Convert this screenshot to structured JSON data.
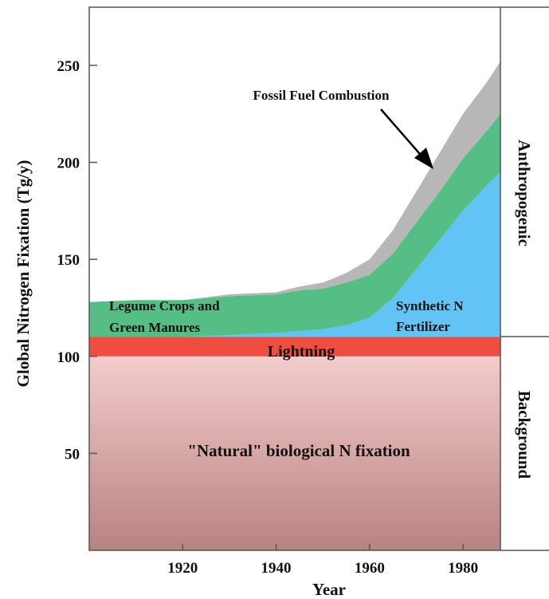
{
  "chart_data": {
    "type": "area",
    "stacked": true,
    "title": "",
    "xlabel": "Year",
    "ylabel": "Global Nitrogen Fixation (Tg/y)",
    "xlim": [
      1900,
      1988
    ],
    "ylim": [
      0,
      280
    ],
    "x_ticks": [
      "1920",
      "1940",
      "1960",
      "1980"
    ],
    "y_ticks": [
      "50",
      "100",
      "150",
      "200",
      "250"
    ],
    "x": [
      1900,
      1910,
      1920,
      1930,
      1940,
      1945,
      1950,
      1955,
      1960,
      1965,
      1970,
      1975,
      1980,
      1985,
      1988
    ],
    "series": [
      {
        "name": "\"Natural\" biological N fixation",
        "color_top": "#f3cccc",
        "color_bottom": "#b98282",
        "values": [
          100,
          100,
          100,
          100,
          100,
          100,
          100,
          100,
          100,
          100,
          100,
          100,
          100,
          100,
          100
        ]
      },
      {
        "name": "Lightning",
        "color": "#ee4d40",
        "values": [
          10,
          10,
          10,
          10,
          10,
          10,
          10,
          10,
          10,
          10,
          10,
          10,
          10,
          10,
          10
        ]
      },
      {
        "name": "Synthetic N Fertilizer",
        "color": "#62c3f5",
        "values": [
          0,
          0,
          0,
          1,
          2,
          3,
          4,
          6,
          10,
          20,
          35,
          50,
          65,
          78,
          85
        ]
      },
      {
        "name": "Legume Crops and Green Manures",
        "color": "#55be85",
        "values": [
          18,
          19,
          19,
          20,
          20,
          21,
          21,
          22,
          22,
          23,
          24,
          25,
          27,
          28,
          30
        ]
      },
      {
        "name": "Fossil Fuel Combustion",
        "color": "#b7b7b7",
        "values": [
          0,
          0,
          0,
          1,
          1,
          2,
          3,
          5,
          8,
          12,
          16,
          20,
          23,
          25,
          27
        ]
      }
    ],
    "annotations": {
      "fossil": "Fossil Fuel Combustion",
      "legume_line1": "Legume Crops and",
      "legume_line2": "Green Manures",
      "synthetic_line1": "Synthetic N",
      "synthetic_line2": "Fertilizer",
      "lightning": "Lightning",
      "natural": "\"Natural\" biological N fixation"
    },
    "side_labels": {
      "anthropogenic": "Anthropogenic",
      "background": "Background"
    },
    "grid": false
  }
}
